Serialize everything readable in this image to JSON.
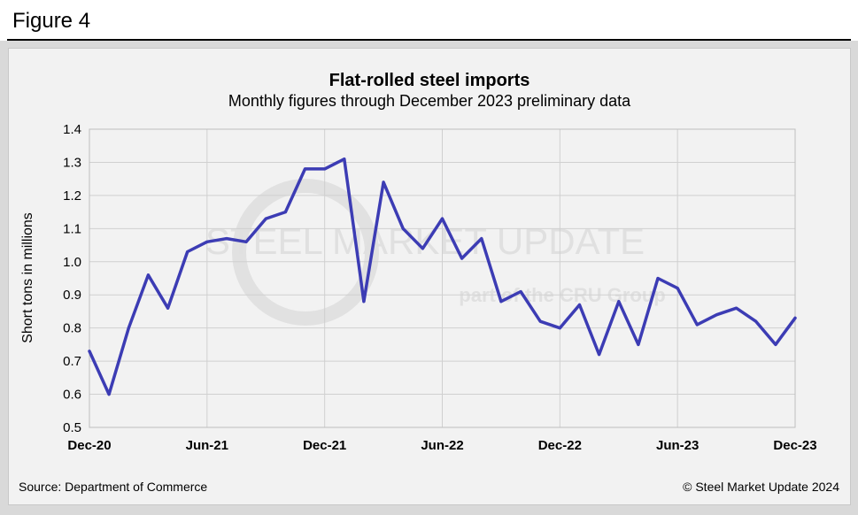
{
  "figure_label": "Figure 4",
  "source": "Source: Department of Commerce",
  "copyright": "© Steel Market Update 2024",
  "watermark": {
    "line1": "STEEL MARKET UPDATE",
    "line2": "part of the CRU Group"
  },
  "colors": {
    "line": "#3c3cb4",
    "grid": "#d0d0d0",
    "panel": "#f2f2f2"
  },
  "chart_data": {
    "type": "line",
    "title": "Flat-rolled steel imports",
    "subtitle": "Monthly figures through December 2023 preliminary data",
    "xlabel": "",
    "ylabel": "Short tons in millions",
    "ylim": [
      0.5,
      1.4
    ],
    "yticks": [
      "0.5",
      "0.6",
      "0.7",
      "0.8",
      "0.9",
      "1.0",
      "1.1",
      "1.2",
      "1.3",
      "1.4"
    ],
    "x_tick_labels": [
      "Dec-20",
      "Jun-21",
      "Dec-21",
      "Jun-22",
      "Dec-22",
      "Jun-23",
      "Dec-23"
    ],
    "x": [
      "Dec-20",
      "Jan-21",
      "Feb-21",
      "Mar-21",
      "Apr-21",
      "May-21",
      "Jun-21",
      "Jul-21",
      "Aug-21",
      "Sep-21",
      "Oct-21",
      "Nov-21",
      "Dec-21",
      "Jan-22",
      "Feb-22",
      "Mar-22",
      "Apr-22",
      "May-22",
      "Jun-22",
      "Jul-22",
      "Aug-22",
      "Sep-22",
      "Oct-22",
      "Nov-22",
      "Dec-22",
      "Jan-23",
      "Feb-23",
      "Mar-23",
      "Apr-23",
      "May-23",
      "Jun-23",
      "Jul-23",
      "Aug-23",
      "Sep-23",
      "Oct-23",
      "Nov-23",
      "Dec-23"
    ],
    "series": [
      {
        "values": [
          0.73,
          0.6,
          0.8,
          0.96,
          0.86,
          1.03,
          1.06,
          1.07,
          1.06,
          1.13,
          1.15,
          1.28,
          1.28,
          1.31,
          0.88,
          1.24,
          1.1,
          1.04,
          1.13,
          1.01,
          1.07,
          0.88,
          0.91,
          0.82,
          0.8,
          0.87,
          0.72,
          0.88,
          0.75,
          0.95,
          0.92,
          0.81,
          0.84,
          0.86,
          0.82,
          0.75,
          0.83
        ]
      }
    ],
    "grid": true,
    "legend": "none"
  }
}
